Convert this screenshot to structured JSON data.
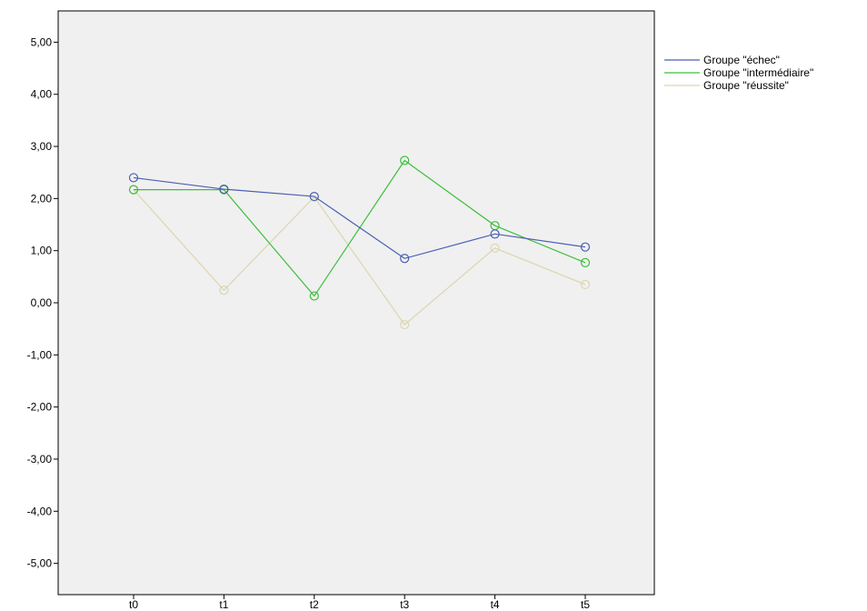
{
  "chart_data": {
    "type": "line",
    "categories": [
      "t0",
      "t1",
      "t2",
      "t3",
      "t4",
      "t5"
    ],
    "ylim": [
      -5.6,
      5.6
    ],
    "yticks": [
      5,
      4,
      3,
      2,
      1,
      0,
      -1,
      -2,
      -3,
      -4,
      -5
    ],
    "ytick_labels": [
      "5,00",
      "4,00",
      "3,00",
      "2,00",
      "1,00",
      "0,00",
      "-1,00",
      "-2,00",
      "-3,00",
      "-4,00",
      "-5,00"
    ],
    "grid": false,
    "plot_background": "#f0f0f0",
    "legend_position": "right",
    "marker": "circle",
    "series": [
      {
        "name": "Groupe \"échec\"",
        "color": "#4a5fb3",
        "values": [
          2.4,
          2.18,
          2.04,
          0.85,
          1.32,
          1.07
        ]
      },
      {
        "name": "Groupe \"intermédiaire\"",
        "color": "#3cbf3c",
        "values": [
          2.17,
          2.17,
          0.13,
          2.73,
          1.48,
          0.77
        ]
      },
      {
        "name": "Groupe \"réussite\"",
        "color": "#dcd5b0",
        "values": [
          2.17,
          0.24,
          2.03,
          -0.42,
          1.05,
          0.35
        ]
      }
    ]
  }
}
